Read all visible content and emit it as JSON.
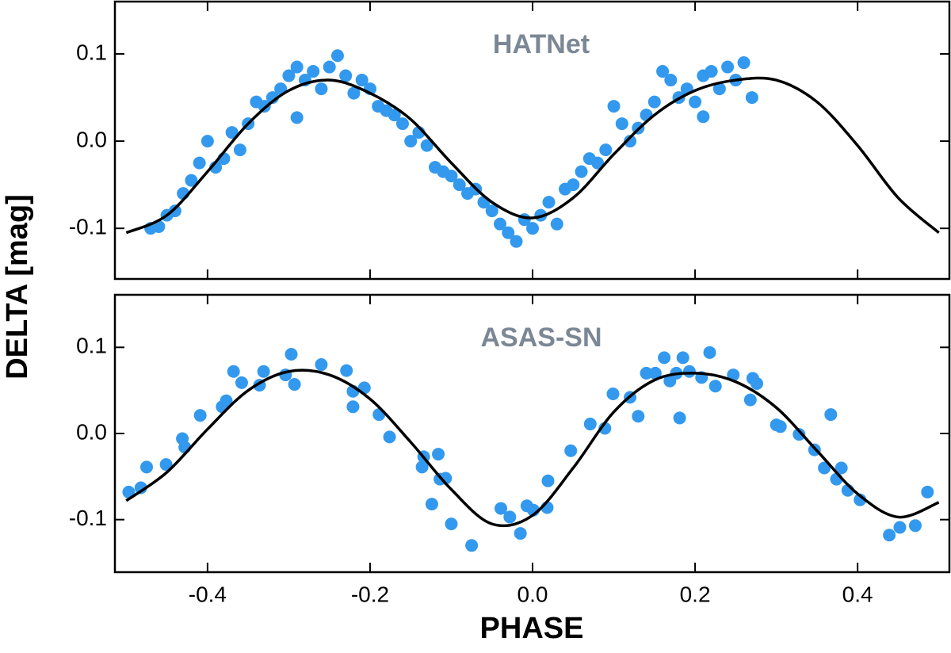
{
  "chart_data": [
    {
      "type": "scatter",
      "title": "HATNet",
      "ylabel": "DELTA [mag]",
      "xlim": [
        -0.514,
        0.513
      ],
      "ylim": [
        -0.158,
        0.16
      ],
      "xticks": [
        -0.4,
        -0.2,
        0,
        0.2,
        0.4
      ],
      "show_xtick_labels": false,
      "yticks": [
        {
          "value": 0.1,
          "label": "0.1"
        },
        {
          "value": 0,
          "label": "0.0"
        },
        {
          "value": -0.1,
          "label": "-0.1"
        }
      ],
      "points": {
        "color": "#3399ee",
        "x": [
          -0.47,
          -0.46,
          -0.45,
          -0.44,
          -0.43,
          -0.42,
          -0.41,
          -0.4,
          -0.39,
          -0.38,
          -0.37,
          -0.36,
          -0.35,
          -0.34,
          -0.33,
          -0.32,
          -0.31,
          -0.3,
          -0.29,
          -0.29,
          -0.28,
          -0.27,
          -0.26,
          -0.25,
          -0.24,
          -0.23,
          -0.22,
          -0.21,
          -0.2,
          -0.19,
          -0.18,
          -0.17,
          -0.16,
          -0.15,
          -0.14,
          -0.13,
          -0.12,
          -0.11,
          -0.1,
          -0.09,
          -0.08,
          -0.07,
          -0.06,
          -0.05,
          -0.04,
          -0.03,
          -0.02,
          -0.01,
          0.0,
          0.01,
          0.02,
          0.03,
          0.04,
          0.05,
          0.06,
          0.07,
          0.08,
          0.09,
          0.1,
          0.11,
          0.12,
          0.13,
          0.14,
          0.15,
          0.16,
          0.17,
          0.18,
          0.19,
          0.2,
          0.21,
          0.21,
          0.22,
          0.23,
          0.24,
          0.25,
          0.26,
          0.27
        ],
        "values": [
          -0.1,
          -0.098,
          -0.085,
          -0.08,
          -0.06,
          -0.045,
          -0.025,
          0.0,
          -0.03,
          -0.02,
          0.01,
          -0.01,
          0.02,
          0.045,
          0.04,
          0.05,
          0.06,
          0.075,
          0.085,
          0.027,
          0.07,
          0.08,
          0.06,
          0.085,
          0.098,
          0.075,
          0.055,
          0.07,
          0.06,
          0.04,
          0.035,
          0.03,
          0.02,
          0.0,
          0.01,
          -0.005,
          -0.03,
          -0.035,
          -0.04,
          -0.05,
          -0.06,
          -0.055,
          -0.07,
          -0.08,
          -0.095,
          -0.105,
          -0.115,
          -0.09,
          -0.1,
          -0.085,
          -0.07,
          -0.095,
          -0.055,
          -0.05,
          -0.035,
          -0.02,
          -0.025,
          -0.01,
          0.04,
          0.02,
          0.0,
          0.015,
          0.03,
          0.045,
          0.08,
          0.07,
          0.05,
          0.06,
          0.045,
          0.075,
          0.028,
          0.08,
          0.06,
          0.085,
          0.07,
          0.09,
          0.05
        ]
      },
      "fit": {
        "color": "#000000",
        "x": [
          -0.5,
          -0.45,
          -0.4,
          -0.35,
          -0.3,
          -0.25,
          -0.2,
          -0.15,
          -0.1,
          -0.05,
          0,
          0.05,
          0.1,
          0.15,
          0.2,
          0.25,
          0.3,
          0.35,
          0.4,
          0.45,
          0.5
        ],
        "values": [
          -0.105,
          -0.085,
          -0.035,
          0.02,
          0.058,
          0.07,
          0.055,
          0.025,
          -0.025,
          -0.07,
          -0.088,
          -0.065,
          -0.015,
          0.03,
          0.058,
          0.07,
          0.07,
          0.045,
          -0.005,
          -0.065,
          -0.105
        ]
      }
    },
    {
      "type": "scatter",
      "title": "ASAS-SN",
      "xlabel": "PHASE",
      "xlim": [
        -0.514,
        0.513
      ],
      "ylim": [
        -0.161,
        0.161
      ],
      "xticks": [
        -0.4,
        -0.2,
        {
          "value": 0,
          "label": "0.0"
        },
        0.2,
        0.4
      ],
      "show_xtick_labels": true,
      "yticks": [
        {
          "value": 0.1,
          "label": "0.1"
        },
        {
          "value": 0,
          "label": "0.0"
        },
        {
          "value": -0.1,
          "label": "-0.1"
        }
      ],
      "points": {
        "color": "#3399ee",
        "x": [
          -0.497,
          -0.482,
          -0.475,
          -0.451,
          -0.431,
          -0.428,
          -0.409,
          -0.382,
          -0.377,
          -0.368,
          -0.358,
          -0.336,
          -0.331,
          -0.304,
          -0.297,
          -0.293,
          -0.26,
          -0.229,
          -0.221,
          -0.221,
          -0.207,
          -0.189,
          -0.176,
          -0.136,
          -0.134,
          -0.124,
          -0.116,
          -0.114,
          -0.107,
          -0.1,
          -0.075,
          -0.039,
          -0.028,
          -0.015,
          -0.007,
          0.001,
          0.018,
          0.019,
          0.047,
          0.071,
          0.089,
          0.099,
          0.12,
          0.13,
          0.14,
          0.151,
          0.162,
          0.169,
          0.177,
          0.181,
          0.185,
          0.193,
          0.208,
          0.218,
          0.225,
          0.247,
          0.268,
          0.271,
          0.276,
          0.3,
          0.305,
          0.328,
          0.347,
          0.359,
          0.367,
          0.374,
          0.38,
          0.388,
          0.403,
          0.439,
          0.452,
          0.471,
          0.486
        ],
        "values": [
          -0.068,
          -0.063,
          -0.039,
          -0.036,
          -0.006,
          -0.016,
          0.021,
          0.031,
          0.038,
          0.072,
          0.059,
          0.056,
          0.072,
          0.068,
          0.092,
          0.057,
          0.08,
          0.073,
          0.049,
          0.031,
          0.053,
          0.022,
          -0.004,
          -0.039,
          -0.027,
          -0.082,
          -0.024,
          -0.053,
          -0.052,
          -0.105,
          -0.13,
          -0.087,
          -0.097,
          -0.116,
          -0.084,
          -0.089,
          -0.086,
          -0.055,
          -0.02,
          0.011,
          0.006,
          0.046,
          0.042,
          0.02,
          0.07,
          0.07,
          0.088,
          0.061,
          0.07,
          0.018,
          0.088,
          0.072,
          0.065,
          0.094,
          0.055,
          0.068,
          0.039,
          0.064,
          0.058,
          0.01,
          0.008,
          -0.001,
          -0.019,
          -0.04,
          0.022,
          -0.053,
          -0.04,
          -0.066,
          -0.077,
          -0.118,
          -0.109,
          -0.107,
          -0.068
        ]
      },
      "fit": {
        "color": "#000000",
        "x": [
          -0.5,
          -0.45,
          -0.4,
          -0.35,
          -0.3,
          -0.25,
          -0.2,
          -0.15,
          -0.1,
          -0.05,
          0,
          0.05,
          0.1,
          0.15,
          0.2,
          0.25,
          0.3,
          0.35,
          0.4,
          0.45,
          0.5
        ],
        "values": [
          -0.078,
          -0.045,
          0.005,
          0.05,
          0.072,
          0.068,
          0.04,
          -0.01,
          -0.065,
          -0.105,
          -0.095,
          -0.04,
          0.025,
          0.062,
          0.07,
          0.06,
          0.03,
          -0.02,
          -0.07,
          -0.097,
          -0.08
        ]
      }
    }
  ]
}
